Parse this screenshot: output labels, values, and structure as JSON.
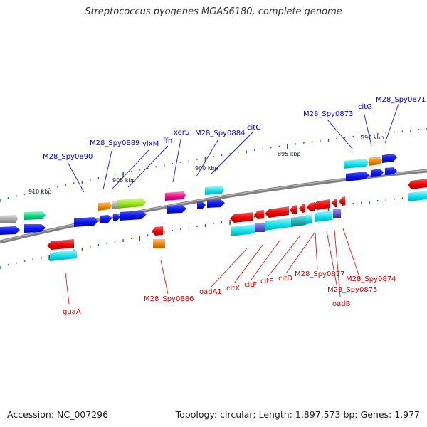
{
  "title": "Streptococcus pyogenes MGAS6180, complete genome",
  "footer": {
    "accession": "Accession: NC_007296",
    "summary": "Topology: circular; Length: 1,897,573 bp; Genes: 1,977"
  },
  "colors": {
    "backbone": "#7a7a7a",
    "upper_label": "#0000cc",
    "lower_label": "#cc0000",
    "tick": "#1a7a1a"
  },
  "scale_labels": [
    "910 kbp",
    "905 kbp",
    "900 kbp",
    "895 kbp",
    "890 kbp"
  ],
  "upper_labels": [
    "M28_Spy0890",
    "M28_Spy0889",
    "ylxM",
    "ffh",
    "xerS",
    "M28_Spy0884",
    "citC",
    "M28_Spy0873",
    "citG",
    "M28_Spy0871"
  ],
  "lower_labels": [
    "guaA",
    "M28_Spy0886",
    "oadA1",
    "citX",
    "citF",
    "citE",
    "citD",
    "M28_Spy0877",
    "M28_Spy0875",
    "oadB",
    "M28_Spy0874"
  ]
}
